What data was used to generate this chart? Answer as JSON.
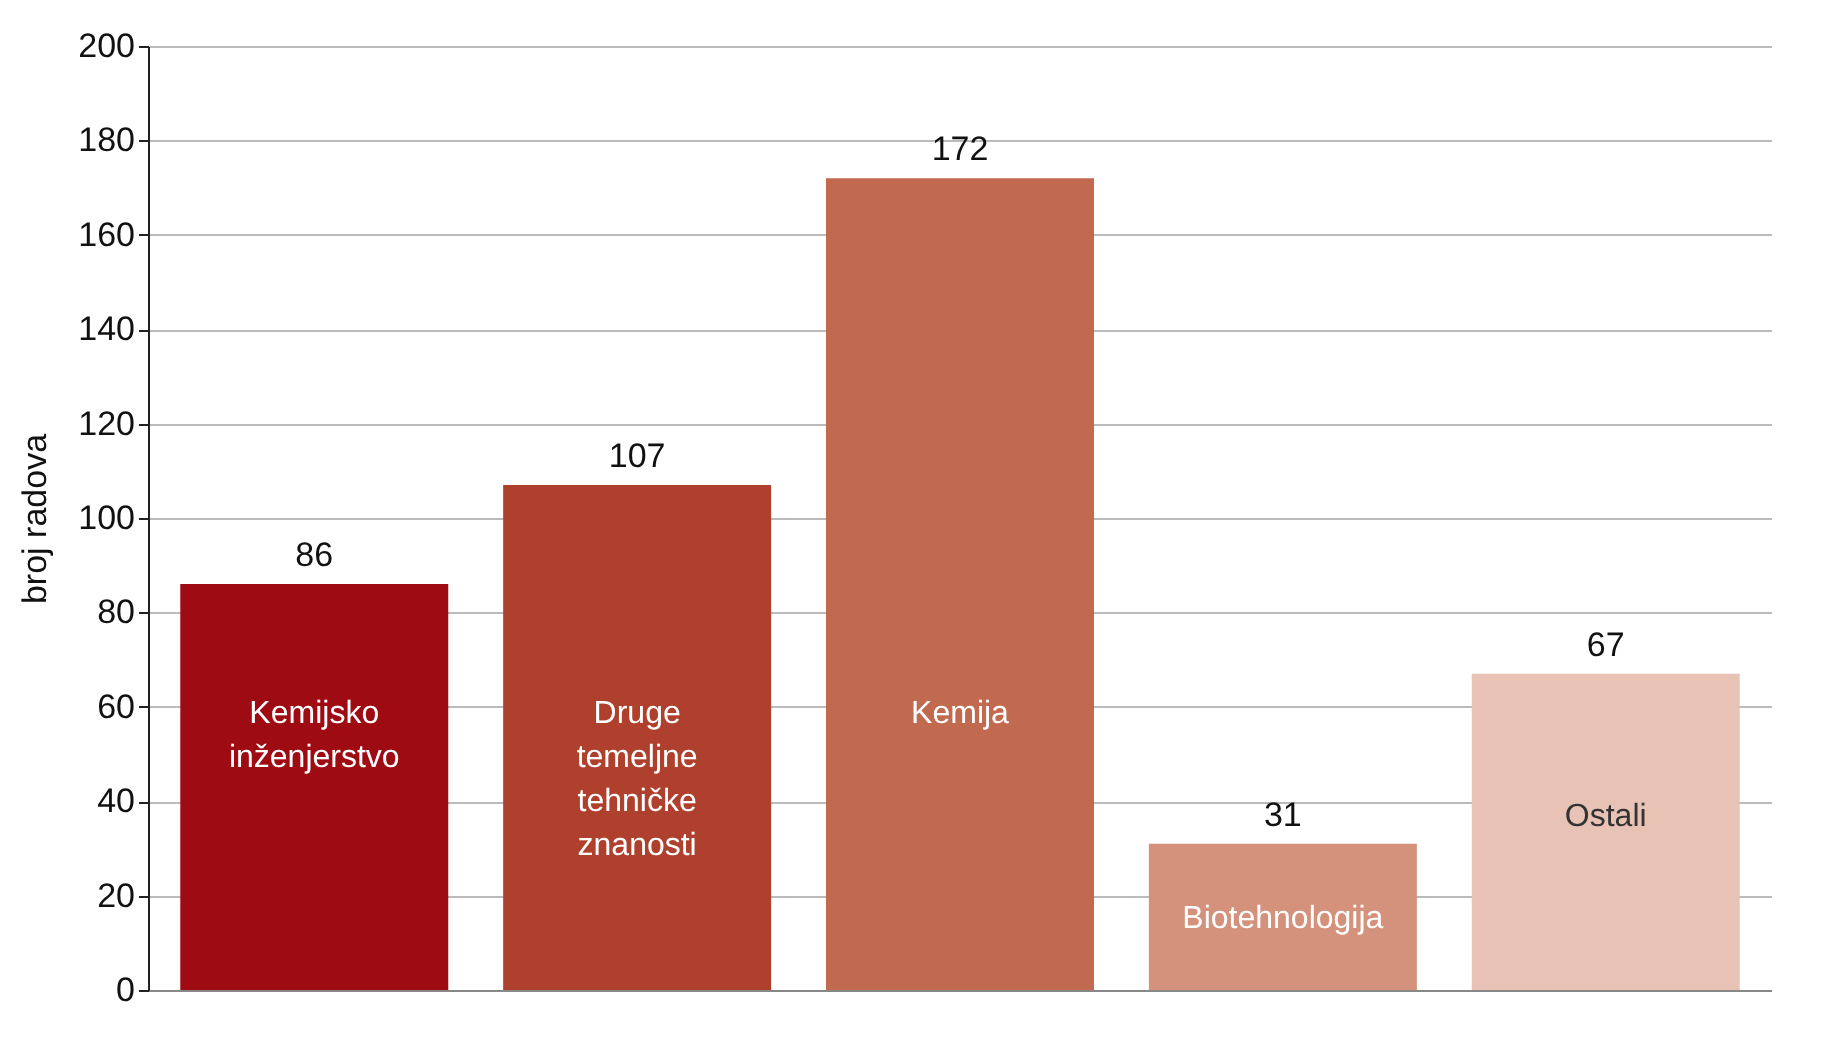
{
  "chart_data": {
    "type": "bar",
    "ylabel": "broj radova",
    "categories": [
      "Kemijsko inženjerstvo",
      "Druge temeljne tehničke znanosti",
      "Kemija",
      "Biotehnologija",
      "Ostali"
    ],
    "values": [
      86,
      107,
      172,
      31,
      67
    ],
    "colors": [
      "#9e0b12",
      "#ae402d",
      "#c26a4f",
      "#d4917b",
      "#e8c2b4"
    ],
    "ylim": [
      0,
      200
    ],
    "yticks": [
      0,
      20,
      40,
      60,
      80,
      100,
      120,
      140,
      160,
      180,
      200
    ],
    "grid": "y",
    "data_labels": true
  }
}
